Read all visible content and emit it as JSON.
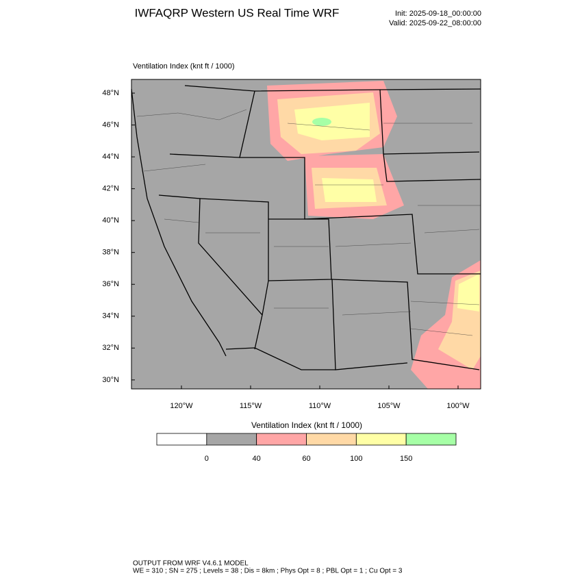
{
  "header": {
    "title": "IWFAQRP Western US Real Time WRF",
    "init": "Init: 2025-09-18_00:00:00",
    "valid": "Valid: 2025-09-22_08:00:00"
  },
  "map": {
    "subtitle": "Ventilation Index   (knt ft / 1000)",
    "lat_ticks": [
      {
        "value": 48,
        "label": "48°N"
      },
      {
        "value": 46,
        "label": "46°N"
      },
      {
        "value": 44,
        "label": "44°N"
      },
      {
        "value": 42,
        "label": "42°N"
      },
      {
        "value": 40,
        "label": "40°N"
      },
      {
        "value": 38,
        "label": "38°N"
      },
      {
        "value": 36,
        "label": "36°N"
      },
      {
        "value": 34,
        "label": "34°N"
      },
      {
        "value": 32,
        "label": "32°N"
      },
      {
        "value": 30,
        "label": "30°N"
      }
    ],
    "lon_ticks": [
      {
        "value": -120,
        "label": "120°W"
      },
      {
        "value": -115,
        "label": "115°W"
      },
      {
        "value": -110,
        "label": "110°W"
      },
      {
        "value": -105,
        "label": "105°W"
      },
      {
        "value": -100,
        "label": "100°W"
      }
    ]
  },
  "colorbar": {
    "label": "Ventilation Index   (knt ft / 1000)",
    "colors": [
      "#ffffff",
      "#a6a6a6",
      "#ffa6a6",
      "#ffd9a6",
      "#ffffa6",
      "#a6ffa6"
    ],
    "ticks": [
      0,
      40,
      60,
      100,
      150
    ]
  },
  "footer": {
    "line1": "OUTPUT FROM WRF V4.6.1 MODEL",
    "line2": "WE = 310 ; SN = 275 ; Levels = 38 ; Dis = 8km ; Phys Opt = 8 ; PBL Opt = 1 ; Cu Opt = 3"
  }
}
